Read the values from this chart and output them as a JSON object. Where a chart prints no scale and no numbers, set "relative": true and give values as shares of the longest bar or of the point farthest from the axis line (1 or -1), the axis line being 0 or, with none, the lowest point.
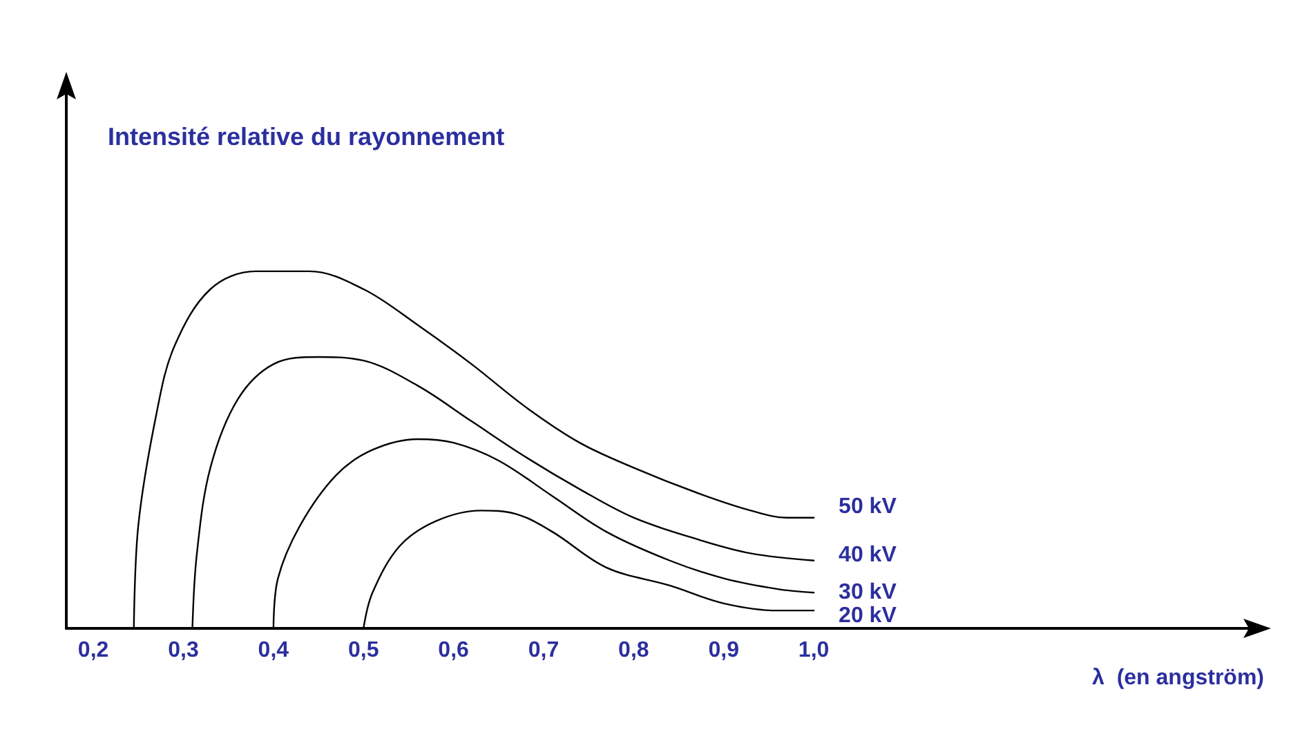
{
  "chart_data": {
    "type": "line",
    "relative": true,
    "xlabel": "λ  (en angström)",
    "ylabel": "Intensité relative du rayonnement",
    "xlim": [
      0.17,
      1.5
    ],
    "xticks": [
      {
        "value": 0.2,
        "label": "0,2"
      },
      {
        "value": 0.3,
        "label": "0,3"
      },
      {
        "value": 0.4,
        "label": "0,4"
      },
      {
        "value": 0.5,
        "label": "0,5"
      },
      {
        "value": 0.6,
        "label": "0,6"
      },
      {
        "value": 0.7,
        "label": "0,7"
      },
      {
        "value": 0.8,
        "label": "0,8"
      },
      {
        "value": 0.9,
        "label": "0,9"
      },
      {
        "value": 1.0,
        "label": "1,0"
      }
    ],
    "grid": false,
    "legend": false,
    "marker": "none",
    "line_style": "solid",
    "series": [
      {
        "name": "50 kV",
        "color": "#000000",
        "x": [
          0.245,
          0.25,
          0.27,
          0.29,
          0.33,
          0.38,
          0.44,
          0.5,
          0.56,
          0.62,
          0.68,
          0.74,
          0.8,
          0.87,
          0.93,
          0.97,
          1.0
        ],
        "values": [
          0,
          0.29,
          0.6,
          0.79,
          0.95,
          1.0,
          1.0,
          0.95,
          0.85,
          0.74,
          0.62,
          0.52,
          0.45,
          0.38,
          0.33,
          0.31,
          0.31
        ]
      },
      {
        "name": "40 kV",
        "color": "#000000",
        "x": [
          0.31,
          0.315,
          0.33,
          0.36,
          0.4,
          0.45,
          0.5,
          0.56,
          0.62,
          0.68,
          0.74,
          0.8,
          0.87,
          0.93,
          1.0
        ],
        "values": [
          0,
          0.21,
          0.45,
          0.64,
          0.74,
          0.76,
          0.75,
          0.68,
          0.58,
          0.48,
          0.39,
          0.31,
          0.25,
          0.21,
          0.19
        ]
      },
      {
        "name": "30 kV",
        "color": "#000000",
        "x": [
          0.4,
          0.405,
          0.43,
          0.47,
          0.51,
          0.56,
          0.6,
          0.65,
          0.71,
          0.77,
          0.84,
          0.9,
          0.96,
          1.0
        ],
        "values": [
          0,
          0.14,
          0.29,
          0.43,
          0.5,
          0.53,
          0.52,
          0.47,
          0.37,
          0.27,
          0.19,
          0.14,
          0.11,
          0.1
        ]
      },
      {
        "name": "20 kV",
        "color": "#000000",
        "x": [
          0.5,
          0.51,
          0.54,
          0.58,
          0.63,
          0.67,
          0.71,
          0.77,
          0.84,
          0.9,
          0.96,
          1.0
        ],
        "values": [
          0,
          0.1,
          0.23,
          0.3,
          0.33,
          0.32,
          0.27,
          0.17,
          0.12,
          0.07,
          0.05,
          0.05
        ]
      }
    ]
  }
}
